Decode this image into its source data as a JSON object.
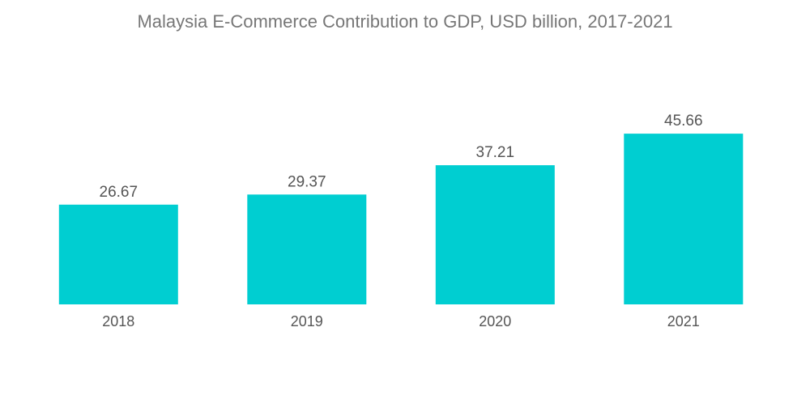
{
  "chart_data": {
    "type": "bar",
    "title": "Malaysia E-Commerce Contribution to GDP, USD billion, 2017-2021",
    "categories": [
      "2018",
      "2019",
      "2020",
      "2021"
    ],
    "values": [
      26.67,
      29.37,
      37.21,
      45.66
    ],
    "value_labels": [
      "26.67",
      "29.37",
      "37.21",
      "45.66"
    ],
    "xlabel": "",
    "ylabel": "",
    "ylim": [
      0,
      50
    ],
    "grid": false,
    "legend": "none",
    "bar_color": "#00CED1",
    "text_color": "#555555",
    "title_color": "#777777"
  }
}
